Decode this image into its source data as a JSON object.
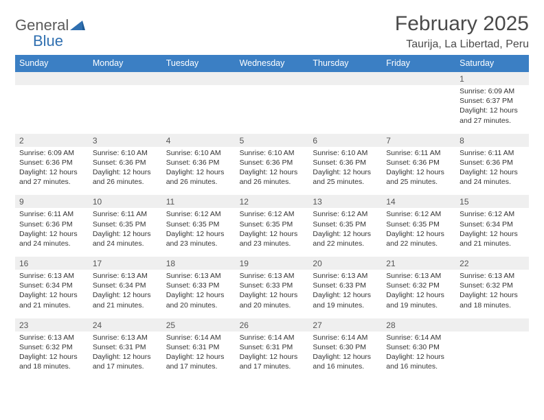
{
  "logo": {
    "general": "General",
    "blue": "Blue"
  },
  "title": "February 2025",
  "location": "Taurija, La Libertad, Peru",
  "colors": {
    "header_bg": "#3b7fc4",
    "header_text": "#ffffff",
    "daynum_bg": "#efefef",
    "text": "#333333",
    "logo_gray": "#5a5a5a",
    "logo_blue": "#2f6fb0"
  },
  "dayNames": [
    "Sunday",
    "Monday",
    "Tuesday",
    "Wednesday",
    "Thursday",
    "Friday",
    "Saturday"
  ],
  "weeks": [
    {
      "nums": [
        "",
        "",
        "",
        "",
        "",
        "",
        "1"
      ],
      "cells": [
        null,
        null,
        null,
        null,
        null,
        null,
        {
          "sunrise": "Sunrise: 6:09 AM",
          "sunset": "Sunset: 6:37 PM",
          "day1": "Daylight: 12 hours",
          "day2": "and 27 minutes."
        }
      ]
    },
    {
      "nums": [
        "2",
        "3",
        "4",
        "5",
        "6",
        "7",
        "8"
      ],
      "cells": [
        {
          "sunrise": "Sunrise: 6:09 AM",
          "sunset": "Sunset: 6:36 PM",
          "day1": "Daylight: 12 hours",
          "day2": "and 27 minutes."
        },
        {
          "sunrise": "Sunrise: 6:10 AM",
          "sunset": "Sunset: 6:36 PM",
          "day1": "Daylight: 12 hours",
          "day2": "and 26 minutes."
        },
        {
          "sunrise": "Sunrise: 6:10 AM",
          "sunset": "Sunset: 6:36 PM",
          "day1": "Daylight: 12 hours",
          "day2": "and 26 minutes."
        },
        {
          "sunrise": "Sunrise: 6:10 AM",
          "sunset": "Sunset: 6:36 PM",
          "day1": "Daylight: 12 hours",
          "day2": "and 26 minutes."
        },
        {
          "sunrise": "Sunrise: 6:10 AM",
          "sunset": "Sunset: 6:36 PM",
          "day1": "Daylight: 12 hours",
          "day2": "and 25 minutes."
        },
        {
          "sunrise": "Sunrise: 6:11 AM",
          "sunset": "Sunset: 6:36 PM",
          "day1": "Daylight: 12 hours",
          "day2": "and 25 minutes."
        },
        {
          "sunrise": "Sunrise: 6:11 AM",
          "sunset": "Sunset: 6:36 PM",
          "day1": "Daylight: 12 hours",
          "day2": "and 24 minutes."
        }
      ]
    },
    {
      "nums": [
        "9",
        "10",
        "11",
        "12",
        "13",
        "14",
        "15"
      ],
      "cells": [
        {
          "sunrise": "Sunrise: 6:11 AM",
          "sunset": "Sunset: 6:36 PM",
          "day1": "Daylight: 12 hours",
          "day2": "and 24 minutes."
        },
        {
          "sunrise": "Sunrise: 6:11 AM",
          "sunset": "Sunset: 6:35 PM",
          "day1": "Daylight: 12 hours",
          "day2": "and 24 minutes."
        },
        {
          "sunrise": "Sunrise: 6:12 AM",
          "sunset": "Sunset: 6:35 PM",
          "day1": "Daylight: 12 hours",
          "day2": "and 23 minutes."
        },
        {
          "sunrise": "Sunrise: 6:12 AM",
          "sunset": "Sunset: 6:35 PM",
          "day1": "Daylight: 12 hours",
          "day2": "and 23 minutes."
        },
        {
          "sunrise": "Sunrise: 6:12 AM",
          "sunset": "Sunset: 6:35 PM",
          "day1": "Daylight: 12 hours",
          "day2": "and 22 minutes."
        },
        {
          "sunrise": "Sunrise: 6:12 AM",
          "sunset": "Sunset: 6:35 PM",
          "day1": "Daylight: 12 hours",
          "day2": "and 22 minutes."
        },
        {
          "sunrise": "Sunrise: 6:12 AM",
          "sunset": "Sunset: 6:34 PM",
          "day1": "Daylight: 12 hours",
          "day2": "and 21 minutes."
        }
      ]
    },
    {
      "nums": [
        "16",
        "17",
        "18",
        "19",
        "20",
        "21",
        "22"
      ],
      "cells": [
        {
          "sunrise": "Sunrise: 6:13 AM",
          "sunset": "Sunset: 6:34 PM",
          "day1": "Daylight: 12 hours",
          "day2": "and 21 minutes."
        },
        {
          "sunrise": "Sunrise: 6:13 AM",
          "sunset": "Sunset: 6:34 PM",
          "day1": "Daylight: 12 hours",
          "day2": "and 21 minutes."
        },
        {
          "sunrise": "Sunrise: 6:13 AM",
          "sunset": "Sunset: 6:33 PM",
          "day1": "Daylight: 12 hours",
          "day2": "and 20 minutes."
        },
        {
          "sunrise": "Sunrise: 6:13 AM",
          "sunset": "Sunset: 6:33 PM",
          "day1": "Daylight: 12 hours",
          "day2": "and 20 minutes."
        },
        {
          "sunrise": "Sunrise: 6:13 AM",
          "sunset": "Sunset: 6:33 PM",
          "day1": "Daylight: 12 hours",
          "day2": "and 19 minutes."
        },
        {
          "sunrise": "Sunrise: 6:13 AM",
          "sunset": "Sunset: 6:32 PM",
          "day1": "Daylight: 12 hours",
          "day2": "and 19 minutes."
        },
        {
          "sunrise": "Sunrise: 6:13 AM",
          "sunset": "Sunset: 6:32 PM",
          "day1": "Daylight: 12 hours",
          "day2": "and 18 minutes."
        }
      ]
    },
    {
      "nums": [
        "23",
        "24",
        "25",
        "26",
        "27",
        "28",
        ""
      ],
      "cells": [
        {
          "sunrise": "Sunrise: 6:13 AM",
          "sunset": "Sunset: 6:32 PM",
          "day1": "Daylight: 12 hours",
          "day2": "and 18 minutes."
        },
        {
          "sunrise": "Sunrise: 6:13 AM",
          "sunset": "Sunset: 6:31 PM",
          "day1": "Daylight: 12 hours",
          "day2": "and 17 minutes."
        },
        {
          "sunrise": "Sunrise: 6:14 AM",
          "sunset": "Sunset: 6:31 PM",
          "day1": "Daylight: 12 hours",
          "day2": "and 17 minutes."
        },
        {
          "sunrise": "Sunrise: 6:14 AM",
          "sunset": "Sunset: 6:31 PM",
          "day1": "Daylight: 12 hours",
          "day2": "and 17 minutes."
        },
        {
          "sunrise": "Sunrise: 6:14 AM",
          "sunset": "Sunset: 6:30 PM",
          "day1": "Daylight: 12 hours",
          "day2": "and 16 minutes."
        },
        {
          "sunrise": "Sunrise: 6:14 AM",
          "sunset": "Sunset: 6:30 PM",
          "day1": "Daylight: 12 hours",
          "day2": "and 16 minutes."
        },
        null
      ]
    }
  ]
}
